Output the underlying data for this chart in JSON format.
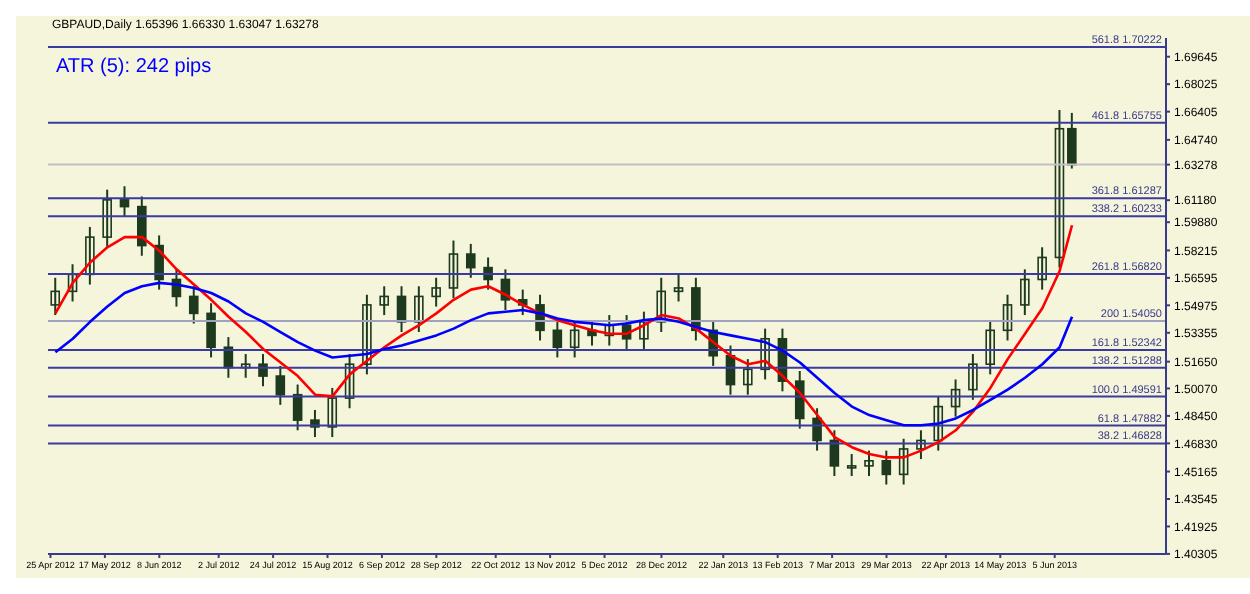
{
  "chart_data": {
    "type": "candlestick",
    "title": "GBPAUD,Daily 1.65396 1.66330 1.63047 1.63278",
    "annotations": [
      "ATR (5): 242 pips"
    ],
    "x": [
      "2012-04-27",
      "2012-05-04",
      "2012-05-11",
      "2012-05-18",
      "2012-05-25",
      "2012-06-01",
      "2012-06-08",
      "2012-06-15",
      "2012-06-22",
      "2012-06-29",
      "2012-07-06",
      "2012-07-13",
      "2012-07-20",
      "2012-07-27",
      "2012-08-03",
      "2012-08-10",
      "2012-08-17",
      "2012-08-24",
      "2012-08-31",
      "2012-09-07",
      "2012-09-14",
      "2012-09-21",
      "2012-09-28",
      "2012-10-05",
      "2012-10-12",
      "2012-10-19",
      "2012-10-26",
      "2012-11-02",
      "2012-11-09",
      "2012-11-16",
      "2012-11-23",
      "2012-11-30",
      "2012-12-07",
      "2012-12-14",
      "2012-12-21",
      "2012-12-28",
      "2013-01-04",
      "2013-01-11",
      "2013-01-18",
      "2013-01-25",
      "2013-02-01",
      "2013-02-08",
      "2013-02-15",
      "2013-02-22",
      "2013-03-01",
      "2013-03-08",
      "2013-03-15",
      "2013-03-22",
      "2013-03-29",
      "2013-04-05",
      "2013-04-12",
      "2013-04-19",
      "2013-04-26",
      "2013-05-03",
      "2013-05-10",
      "2013-05-17",
      "2013-05-24",
      "2013-05-31",
      "2013-06-07",
      "2013-06-12"
    ],
    "ohlc": [
      [
        1.55,
        1.566,
        1.544,
        1.558
      ],
      [
        1.558,
        1.574,
        1.552,
        1.568
      ],
      [
        1.568,
        1.596,
        1.562,
        1.59
      ],
      [
        1.59,
        1.618,
        1.584,
        1.612
      ],
      [
        1.612,
        1.62,
        1.602,
        1.608
      ],
      [
        1.608,
        1.614,
        1.579,
        1.585
      ],
      [
        1.585,
        1.591,
        1.559,
        1.565
      ],
      [
        1.565,
        1.571,
        1.549,
        1.555
      ],
      [
        1.555,
        1.561,
        1.539,
        1.545
      ],
      [
        1.545,
        1.551,
        1.519,
        1.525
      ],
      [
        1.525,
        1.531,
        1.507,
        1.513
      ],
      [
        1.513,
        1.521,
        1.507,
        1.515
      ],
      [
        1.515,
        1.521,
        1.502,
        1.508
      ],
      [
        1.508,
        1.514,
        1.491,
        1.497
      ],
      [
        1.497,
        1.503,
        1.476,
        1.482
      ],
      [
        1.482,
        1.488,
        1.472,
        1.478
      ],
      [
        1.478,
        1.501,
        1.472,
        1.495
      ],
      [
        1.495,
        1.521,
        1.489,
        1.515
      ],
      [
        1.515,
        1.556,
        1.509,
        1.55
      ],
      [
        1.55,
        1.561,
        1.544,
        1.555
      ],
      [
        1.555,
        1.561,
        1.534,
        1.54
      ],
      [
        1.54,
        1.561,
        1.534,
        1.555
      ],
      [
        1.555,
        1.566,
        1.549,
        1.56
      ],
      [
        1.56,
        1.588,
        1.554,
        1.58
      ],
      [
        1.58,
        1.586,
        1.566,
        1.572
      ],
      [
        1.572,
        1.578,
        1.559,
        1.565
      ],
      [
        1.565,
        1.571,
        1.547,
        1.553
      ],
      [
        1.553,
        1.559,
        1.544,
        1.55
      ],
      [
        1.55,
        1.556,
        1.529,
        1.535
      ],
      [
        1.535,
        1.541,
        1.519,
        1.525
      ],
      [
        1.525,
        1.541,
        1.519,
        1.535
      ],
      [
        1.535,
        1.541,
        1.526,
        1.532
      ],
      [
        1.532,
        1.544,
        1.526,
        1.538
      ],
      [
        1.538,
        1.544,
        1.524,
        1.53
      ],
      [
        1.53,
        1.546,
        1.524,
        1.54
      ],
      [
        1.54,
        1.566,
        1.534,
        1.558
      ],
      [
        1.558,
        1.568,
        1.552,
        1.56
      ],
      [
        1.56,
        1.566,
        1.529,
        1.535
      ],
      [
        1.535,
        1.541,
        1.514,
        1.52
      ],
      [
        1.52,
        1.526,
        1.497,
        1.503
      ],
      [
        1.503,
        1.518,
        1.497,
        1.512
      ],
      [
        1.512,
        1.536,
        1.506,
        1.53
      ],
      [
        1.53,
        1.536,
        1.499,
        1.505
      ],
      [
        1.505,
        1.511,
        1.477,
        1.483
      ],
      [
        1.483,
        1.489,
        1.464,
        1.47
      ],
      [
        1.47,
        1.476,
        1.449,
        1.455
      ],
      [
        1.455,
        1.462,
        1.449,
        1.455
      ],
      [
        1.455,
        1.464,
        1.449,
        1.458
      ],
      [
        1.458,
        1.464,
        1.444,
        1.45
      ],
      [
        1.45,
        1.471,
        1.444,
        1.465
      ],
      [
        1.465,
        1.476,
        1.459,
        1.47
      ],
      [
        1.47,
        1.496,
        1.464,
        1.49
      ],
      [
        1.49,
        1.506,
        1.484,
        1.5
      ],
      [
        1.5,
        1.521,
        1.494,
        1.515
      ],
      [
        1.515,
        1.541,
        1.509,
        1.535
      ],
      [
        1.535,
        1.556,
        1.529,
        1.55
      ],
      [
        1.55,
        1.571,
        1.544,
        1.565
      ],
      [
        1.565,
        1.584,
        1.559,
        1.578
      ],
      [
        1.578,
        1.665,
        1.572,
        1.65396
      ],
      [
        1.65396,
        1.6633,
        1.63047,
        1.63278
      ]
    ],
    "color": "#1e3a1e",
    "series": [
      {
        "type": "line",
        "color": "#ff0000",
        "values": [
          1.545,
          1.563,
          1.575,
          1.584,
          1.59,
          1.59,
          1.582,
          1.571,
          1.562,
          1.553,
          1.543,
          1.534,
          1.524,
          1.516,
          1.508,
          1.497,
          1.496,
          1.509,
          1.517,
          1.525,
          1.532,
          1.538,
          1.545,
          1.553,
          1.559,
          1.561,
          1.556,
          1.55,
          1.545,
          1.541,
          1.538,
          1.535,
          1.533,
          1.533,
          1.538,
          1.544,
          1.542,
          1.536,
          1.528,
          1.52,
          1.515,
          1.517,
          1.508,
          1.498,
          1.485,
          1.472,
          1.466,
          1.462,
          1.46,
          1.46,
          1.464,
          1.469,
          1.476,
          1.487,
          1.501,
          1.518,
          1.533,
          1.548,
          1.57,
          1.597
        ]
      },
      {
        "type": "line",
        "color": "#0000ff",
        "values": [
          1.522,
          1.53,
          1.54,
          1.549,
          1.557,
          1.561,
          1.563,
          1.562,
          1.56,
          1.557,
          1.552,
          1.545,
          1.54,
          1.534,
          1.528,
          1.523,
          1.519,
          1.52,
          1.521,
          1.524,
          1.526,
          1.529,
          1.532,
          1.536,
          1.541,
          1.545,
          1.546,
          1.547,
          1.545,
          1.542,
          1.54,
          1.539,
          1.538,
          1.539,
          1.541,
          1.542,
          1.54,
          1.537,
          1.534,
          1.532,
          1.53,
          1.528,
          1.523,
          1.516,
          1.507,
          1.498,
          1.49,
          1.485,
          1.482,
          1.479,
          1.479,
          1.48,
          1.483,
          1.488,
          1.494,
          1.5,
          1.507,
          1.515,
          1.525,
          1.543
        ]
      }
    ],
    "xlim": [
      "2012-04-24",
      "2013-07-20"
    ],
    "xticks": [
      {
        "value": "2012-04-25",
        "label": "25 Apr 2012"
      },
      {
        "value": "2012-05-17",
        "label": "17 May 2012"
      },
      {
        "value": "2012-06-08",
        "label": "8 Jun 2012"
      },
      {
        "value": "2012-07-02",
        "label": "2 Jul 2012"
      },
      {
        "value": "2012-07-24",
        "label": "24 Jul 2012"
      },
      {
        "value": "2012-08-15",
        "label": "15 Aug 2012"
      },
      {
        "value": "2012-09-06",
        "label": "6 Sep 2012"
      },
      {
        "value": "2012-09-28",
        "label": "28 Sep 2012"
      },
      {
        "value": "2012-10-22",
        "label": "22 Oct 2012"
      },
      {
        "value": "2012-11-13",
        "label": "13 Nov 2012"
      },
      {
        "value": "2012-12-05",
        "label": "5 Dec 2012"
      },
      {
        "value": "2012-12-28",
        "label": "28 Dec 2012"
      },
      {
        "value": "2013-01-22",
        "label": "22 Jan 2013"
      },
      {
        "value": "2013-02-13",
        "label": "13 Feb 2013"
      },
      {
        "value": "2013-03-07",
        "label": "7 Mar 2013"
      },
      {
        "value": "2013-03-29",
        "label": "29 Mar 2013"
      },
      {
        "value": "2013-04-22",
        "label": "22 Apr 2013"
      },
      {
        "value": "2013-05-14",
        "label": "14 May 2013"
      },
      {
        "value": "2013-06-05",
        "label": "5 Jun 2013"
      }
    ],
    "ylim": [
      1.403,
      1.7075
    ],
    "yticks": [
      {
        "value": 1.69645,
        "label": "1.69645"
      },
      {
        "value": 1.68025,
        "label": "1.68025"
      },
      {
        "value": 1.66405,
        "label": "1.66405"
      },
      {
        "value": 1.6474,
        "label": "1.64740"
      },
      {
        "value": 1.63278,
        "label": "1.63278"
      },
      {
        "value": 1.6118,
        "label": "1.61180"
      },
      {
        "value": 1.5988,
        "label": "1.59880"
      },
      {
        "value": 1.58215,
        "label": "1.58215"
      },
      {
        "value": 1.56595,
        "label": "1.56595"
      },
      {
        "value": 1.54975,
        "label": "1.54975"
      },
      {
        "value": 1.53355,
        "label": "1.53355"
      },
      {
        "value": 1.5165,
        "label": "1.51650"
      },
      {
        "value": 1.5007,
        "label": "1.50070"
      },
      {
        "value": 1.4845,
        "label": "1.48450"
      },
      {
        "value": 1.4683,
        "label": "1.46830"
      },
      {
        "value": 1.45165,
        "label": "1.45165"
      },
      {
        "value": 1.43545,
        "label": "1.43545"
      },
      {
        "value": 1.41925,
        "label": "1.41925"
      },
      {
        "value": 1.40305,
        "label": "1.40305"
      }
    ],
    "ref_lines": [
      {
        "axis": "y",
        "value": 1.63278,
        "color": "#c0c0c0"
      },
      {
        "axis": "y",
        "value": 1.70222,
        "label": "561.8  1.70222",
        "color": "#3a3aa0"
      },
      {
        "axis": "y",
        "value": 1.65755,
        "label": "461.8  1.65755",
        "color": "#3a3aa0"
      },
      {
        "axis": "y",
        "value": 1.61287,
        "label": "361.8  1.61287",
        "color": "#3a3aa0"
      },
      {
        "axis": "y",
        "value": 1.60233,
        "label": "338.2  1.60233",
        "color": "#3a3aa0"
      },
      {
        "axis": "y",
        "value": 1.5682,
        "label": "261.8  1.56820",
        "color": "#3a3aa0"
      },
      {
        "axis": "y",
        "value": 1.5405,
        "label": "200  1.54050",
        "color": "#a0a0c0"
      },
      {
        "axis": "y",
        "value": 1.52342,
        "label": "161.8  1.52342",
        "color": "#3a3aa0"
      },
      {
        "axis": "y",
        "value": 1.51288,
        "label": "138.2  1.51288",
        "color": "#3a3aa0"
      },
      {
        "axis": "y",
        "value": 1.49591,
        "label": "100.0  1.49591",
        "color": "#3a3aa0"
      },
      {
        "axis": "y",
        "value": 1.47882,
        "label": "61.8  1.47882",
        "color": "#3a3aa0"
      },
      {
        "axis": "y",
        "value": 1.46828,
        "label": "38.2  1.46828",
        "color": "#3a3aa0"
      }
    ]
  }
}
